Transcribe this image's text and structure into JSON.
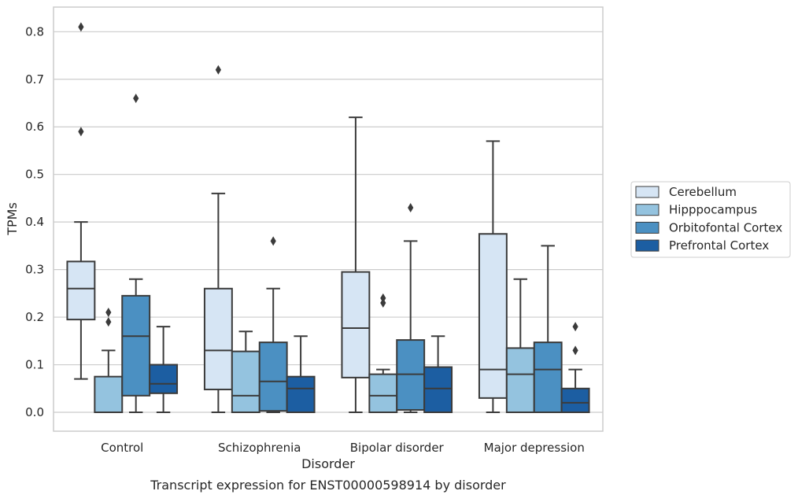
{
  "chart_data": {
    "type": "box",
    "xlabel": "Disorder",
    "ylabel": "TPMs",
    "caption": "Transcript expression for ENST00000598914 by disorder",
    "ylim": [
      -0.04,
      0.855
    ],
    "yticks": [
      0.0,
      0.1,
      0.2,
      0.3,
      0.4,
      0.5,
      0.6,
      0.7,
      0.8
    ],
    "ytick_labels": [
      "0.0",
      "0.1",
      "0.2",
      "0.3",
      "0.4",
      "0.5",
      "0.6",
      "0.7",
      "0.8"
    ],
    "grid": true,
    "legend_position": "right",
    "categories": [
      "Control",
      "Schizophrenia",
      "Bipolar disorder",
      "Major depression"
    ],
    "series": [
      {
        "name": "Cerebellum",
        "color": "#d6e5f4",
        "boxes": [
          {
            "whisker_low": 0.07,
            "q1": 0.195,
            "median": 0.26,
            "q3": 0.317,
            "whisker_high": 0.4,
            "outliers": [
              0.59,
              0.81
            ]
          },
          {
            "whisker_low": 0.0,
            "q1": 0.048,
            "median": 0.13,
            "q3": 0.26,
            "whisker_high": 0.46,
            "outliers": [
              0.72
            ]
          },
          {
            "whisker_low": 0.0,
            "q1": 0.073,
            "median": 0.177,
            "q3": 0.295,
            "whisker_high": 0.62,
            "outliers": []
          },
          {
            "whisker_low": 0.0,
            "q1": 0.03,
            "median": 0.09,
            "q3": 0.375,
            "whisker_high": 0.57,
            "outliers": []
          }
        ]
      },
      {
        "name": "Hipppocampus",
        "color": "#94c3df",
        "boxes": [
          {
            "whisker_low": 0.0,
            "q1": 0.0,
            "median": 0.0,
            "q3": 0.075,
            "whisker_high": 0.13,
            "outliers": [
              0.19,
              0.21
            ]
          },
          {
            "whisker_low": 0.0,
            "q1": 0.0,
            "median": 0.035,
            "q3": 0.128,
            "whisker_high": 0.17,
            "outliers": []
          },
          {
            "whisker_low": 0.0,
            "q1": 0.0,
            "median": 0.035,
            "q3": 0.08,
            "whisker_high": 0.09,
            "outliers": [
              0.23,
              0.24
            ]
          },
          {
            "whisker_low": 0.0,
            "q1": 0.0,
            "median": 0.08,
            "q3": 0.135,
            "whisker_high": 0.28,
            "outliers": []
          }
        ]
      },
      {
        "name": "Orbitofontal Cortex",
        "color": "#4b90c2",
        "boxes": [
          {
            "whisker_low": 0.0,
            "q1": 0.035,
            "median": 0.16,
            "q3": 0.245,
            "whisker_high": 0.28,
            "outliers": [
              0.66
            ]
          },
          {
            "whisker_low": 0.0,
            "q1": 0.003,
            "median": 0.065,
            "q3": 0.147,
            "whisker_high": 0.26,
            "outliers": [
              0.36
            ]
          },
          {
            "whisker_low": 0.0,
            "q1": 0.005,
            "median": 0.08,
            "q3": 0.152,
            "whisker_high": 0.36,
            "outliers": [
              0.43
            ]
          },
          {
            "whisker_low": 0.0,
            "q1": 0.0,
            "median": 0.09,
            "q3": 0.147,
            "whisker_high": 0.35,
            "outliers": []
          }
        ]
      },
      {
        "name": "Prefrontal Cortex",
        "color": "#1c5ea2",
        "boxes": [
          {
            "whisker_low": 0.0,
            "q1": 0.04,
            "median": 0.06,
            "q3": 0.1,
            "whisker_high": 0.18,
            "outliers": []
          },
          {
            "whisker_low": 0.0,
            "q1": 0.0,
            "median": 0.05,
            "q3": 0.075,
            "whisker_high": 0.16,
            "outliers": []
          },
          {
            "whisker_low": 0.0,
            "q1": 0.0,
            "median": 0.05,
            "q3": 0.095,
            "whisker_high": 0.16,
            "outliers": []
          },
          {
            "whisker_low": 0.0,
            "q1": 0.0,
            "median": 0.02,
            "q3": 0.05,
            "whisker_high": 0.09,
            "outliers": [
              0.13,
              0.18
            ]
          }
        ]
      }
    ]
  }
}
